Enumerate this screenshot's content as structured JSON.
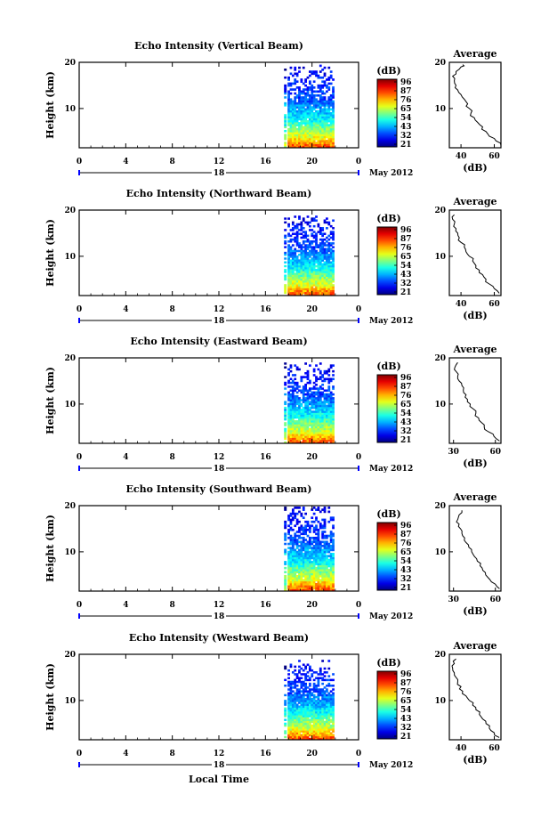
{
  "chart_data": [
    {
      "type": "heatmap",
      "title": "Echo Intensity (Vertical Beam)",
      "ylabel": "Height (km)",
      "xlim": [
        0,
        24
      ],
      "ylim": [
        1.5,
        20
      ],
      "x_ticks": [
        "0",
        "4",
        "8",
        "12",
        "16",
        "20",
        "0"
      ],
      "y_ticks": [
        "10",
        "20"
      ],
      "date_day": "18",
      "date_month": "May 2012",
      "colorbar": {
        "unit": "(dB)",
        "ticks": [
          "96",
          "87",
          "76",
          "65",
          "54",
          "43",
          "32",
          "21"
        ],
        "range": [
          21,
          96
        ]
      },
      "data_extent": {
        "x_start": 17.9,
        "x_end": 21.9,
        "y_min": 1.5,
        "y_max": 19.5
      },
      "average_profile": {
        "title": "Average",
        "xlabel": "(dB)",
        "x_ticks": [
          "40",
          "60"
        ],
        "xlim": [
          33,
          64
        ],
        "y_ticks": [
          "10",
          "20"
        ],
        "heights": [
          2,
          3,
          4,
          5,
          6,
          7,
          8,
          9,
          10,
          11,
          12,
          13,
          14,
          15,
          16,
          17,
          18,
          19,
          19.5
        ],
        "values": [
          64,
          61,
          57,
          55,
          53,
          50,
          48,
          46,
          45,
          44,
          42,
          40,
          38,
          37,
          36,
          35,
          37,
          40,
          41
        ]
      }
    },
    {
      "type": "heatmap",
      "title": "Echo Intensity (Northward Beam)",
      "ylabel": "Height (km)",
      "xlim": [
        0,
        24
      ],
      "ylim": [
        1.5,
        20
      ],
      "x_ticks": [
        "0",
        "4",
        "8",
        "12",
        "16",
        "20",
        "0"
      ],
      "y_ticks": [
        "10",
        "20"
      ],
      "date_day": "18",
      "date_month": "May 2012",
      "colorbar": {
        "unit": "(dB)",
        "ticks": [
          "96",
          "87",
          "76",
          "65",
          "54",
          "43",
          "32",
          "21"
        ],
        "range": [
          21,
          96
        ]
      },
      "data_extent": {
        "x_start": 17.9,
        "x_end": 21.9,
        "y_min": 1.5,
        "y_max": 18.8
      },
      "average_profile": {
        "title": "Average",
        "xlabel": "(dB)",
        "x_ticks": [
          "40",
          "60"
        ],
        "xlim": [
          33,
          64
        ],
        "y_ticks": [
          "10",
          "20"
        ],
        "heights": [
          2,
          3,
          4,
          5,
          6,
          7,
          8,
          9,
          10,
          11,
          12,
          13,
          14,
          15,
          16,
          17,
          18,
          19
        ],
        "values": [
          63,
          60,
          57,
          55,
          53,
          51,
          49,
          47,
          45,
          43,
          42,
          40,
          39,
          38,
          37,
          36,
          35,
          36
        ]
      }
    },
    {
      "type": "heatmap",
      "title": "Echo Intensity (Eastward Beam)",
      "ylabel": "Height (km)",
      "xlim": [
        0,
        24
      ],
      "ylim": [
        1.5,
        20
      ],
      "x_ticks": [
        "0",
        "4",
        "8",
        "12",
        "16",
        "20",
        "0"
      ],
      "y_ticks": [
        "10",
        "20"
      ],
      "date_day": "18",
      "date_month": "May 2012",
      "colorbar": {
        "unit": "(dB)",
        "ticks": [
          "96",
          "87",
          "76",
          "65",
          "54",
          "43",
          "32",
          "21"
        ],
        "range": [
          21,
          96
        ]
      },
      "data_extent": {
        "x_start": 17.9,
        "x_end": 21.9,
        "y_min": 1.5,
        "y_max": 19.0
      },
      "average_profile": {
        "title": "Average",
        "xlabel": "(dB)",
        "x_ticks": [
          "30",
          "60"
        ],
        "xlim": [
          27,
          64
        ],
        "y_ticks": [
          "10",
          "20"
        ],
        "heights": [
          2,
          3,
          4,
          5,
          6,
          7,
          8,
          9,
          10,
          11,
          12,
          13,
          14,
          15,
          16,
          17,
          18,
          19
        ],
        "values": [
          63,
          59,
          55,
          52,
          50,
          48,
          46,
          44,
          42,
          40,
          39,
          37,
          36,
          34,
          33,
          32,
          31,
          33
        ]
      }
    },
    {
      "type": "heatmap",
      "title": "Echo Intensity (Southward Beam)",
      "ylabel": "Height (km)",
      "xlim": [
        0,
        24
      ],
      "ylim": [
        1.5,
        20
      ],
      "x_ticks": [
        "0",
        "4",
        "8",
        "12",
        "16",
        "20",
        "0"
      ],
      "y_ticks": [
        "10",
        "20"
      ],
      "date_day": "18",
      "date_month": "May 2012",
      "colorbar": {
        "unit": "(dB)",
        "ticks": [
          "96",
          "87",
          "76",
          "65",
          "54",
          "43",
          "32",
          "21"
        ],
        "range": [
          21,
          96
        ]
      },
      "data_extent": {
        "x_start": 17.9,
        "x_end": 21.9,
        "y_min": 1.5,
        "y_max": 19.8
      },
      "average_profile": {
        "title": "Average",
        "xlabel": "(dB)",
        "x_ticks": [
          "30",
          "60"
        ],
        "xlim": [
          27,
          64
        ],
        "y_ticks": [
          "10",
          "20"
        ],
        "heights": [
          2,
          3,
          4,
          5,
          6,
          7,
          8,
          9,
          10,
          11,
          12,
          13,
          14,
          15,
          16,
          17,
          18,
          19
        ],
        "values": [
          63,
          60,
          56,
          53,
          51,
          49,
          47,
          45,
          43,
          41,
          39,
          38,
          36,
          35,
          34,
          33,
          34,
          36
        ]
      }
    },
    {
      "type": "heatmap",
      "title": "Echo Intensity (Westward Beam)",
      "ylabel": "Height (km)",
      "xlabel": "Local Time",
      "xlim": [
        0,
        24
      ],
      "ylim": [
        1.5,
        20
      ],
      "x_ticks": [
        "0",
        "4",
        "8",
        "12",
        "16",
        "20",
        "0"
      ],
      "y_ticks": [
        "10",
        "20"
      ],
      "date_day": "18",
      "date_month": "May 2012",
      "colorbar": {
        "unit": "(dB)",
        "ticks": [
          "96",
          "87",
          "76",
          "65",
          "54",
          "43",
          "32",
          "21"
        ],
        "range": [
          21,
          96
        ]
      },
      "data_extent": {
        "x_start": 17.9,
        "x_end": 21.9,
        "y_min": 1.5,
        "y_max": 18.8
      },
      "average_profile": {
        "title": "Average",
        "xlabel": "(dB)",
        "x_ticks": [
          "40",
          "60"
        ],
        "xlim": [
          33,
          64
        ],
        "y_ticks": [
          "10",
          "20"
        ],
        "heights": [
          2,
          3,
          4,
          5,
          6,
          7,
          8,
          9,
          10,
          11,
          12,
          13,
          14,
          15,
          16,
          17,
          18,
          19
        ],
        "values": [
          63,
          60,
          57,
          55,
          53,
          51,
          49,
          47,
          45,
          43,
          41,
          40,
          38,
          37,
          36,
          35,
          36,
          37
        ]
      }
    }
  ]
}
